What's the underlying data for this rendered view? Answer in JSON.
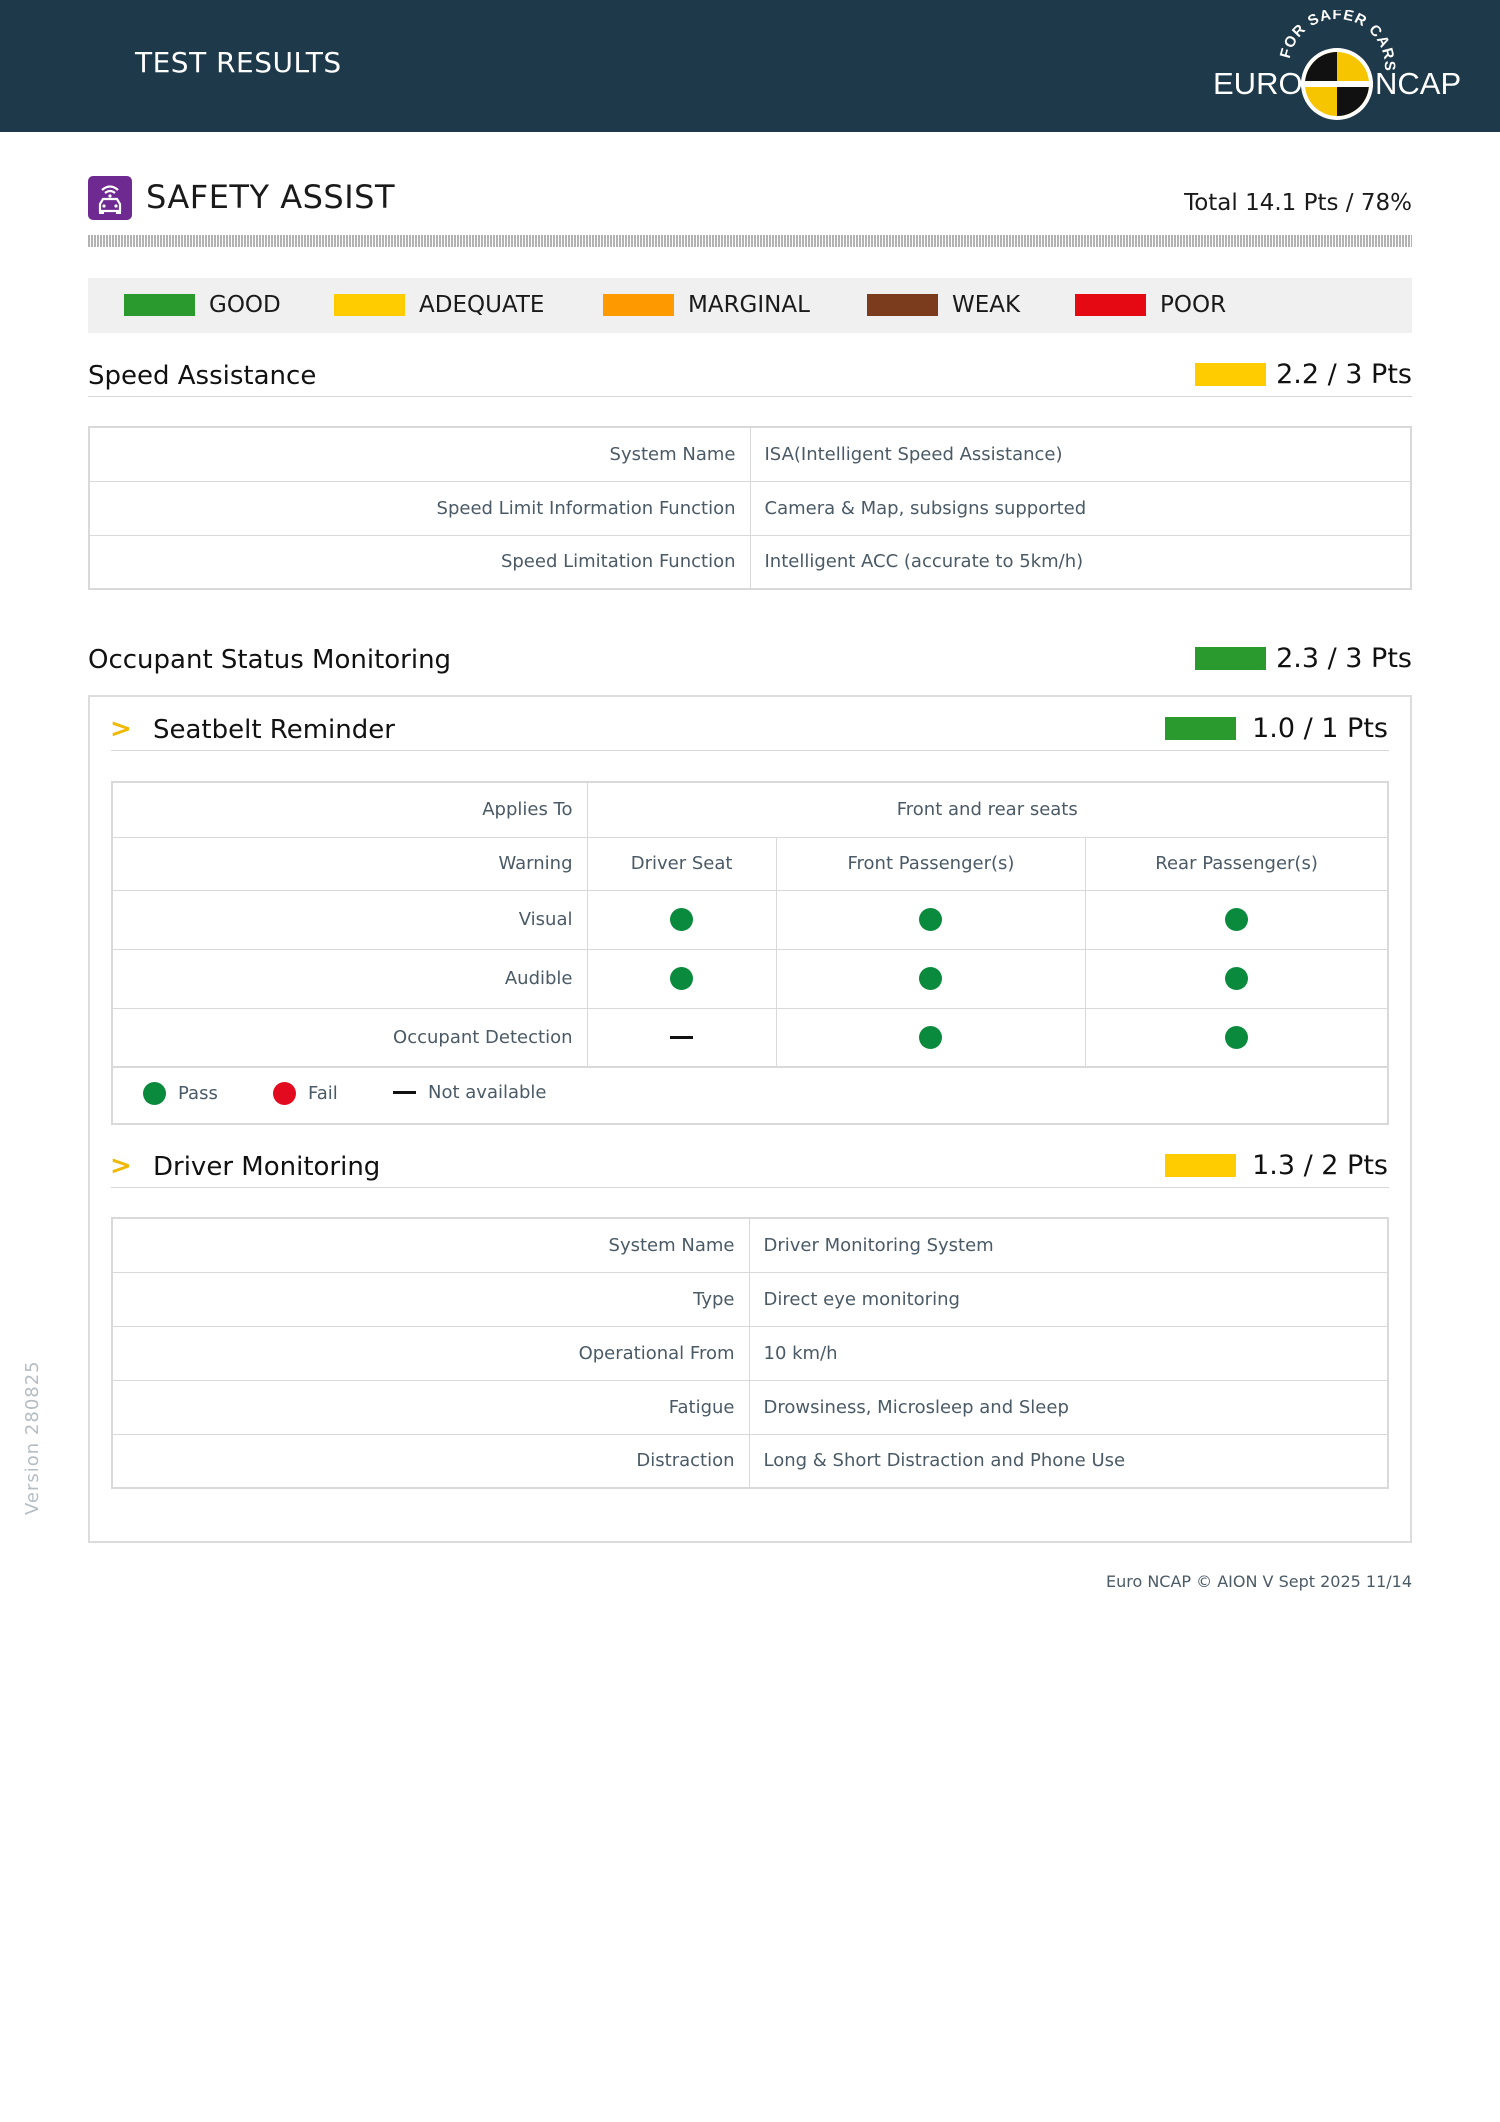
{
  "header": {
    "title": "TEST RESULTS",
    "logo": {
      "left_word": "EURO",
      "right_word": "NCAP",
      "arc_text": "FOR SAFER CARS"
    }
  },
  "section": {
    "title": "SAFETY ASSIST",
    "total": "Total 14.1 Pts / 78%",
    "icon": "car-signal-icon"
  },
  "legend": [
    {
      "label": "GOOD",
      "color": "#2a9a2e"
    },
    {
      "label": "ADEQUATE",
      "color": "#ffcc00"
    },
    {
      "label": "MARGINAL",
      "color": "#ff9900"
    },
    {
      "label": "WEAK",
      "color": "#7b3c1e"
    },
    {
      "label": "POOR",
      "color": "#e50914"
    }
  ],
  "speed_assistance": {
    "title": "Speed Assistance",
    "score": "2.2 / 3 Pts",
    "color": "#ffcc00",
    "rows": [
      {
        "key": "System Name",
        "value": "ISA(Intelligent Speed Assistance)"
      },
      {
        "key": "Speed Limit Information Function",
        "value": "Camera & Map, subsigns supported"
      },
      {
        "key": "Speed Limitation Function",
        "value": "Intelligent ACC (accurate to 5km/h)"
      }
    ]
  },
  "occupant_status": {
    "title": "Occupant Status Monitoring",
    "score": "2.3 / 3 Pts",
    "color": "#2a9a2e",
    "seatbelt": {
      "title": "Seatbelt Reminder",
      "score": "1.0 / 1 Pts",
      "color": "#2a9a2e",
      "applies_to_label": "Applies To",
      "applies_to_value": "Front and rear seats",
      "warning_label": "Warning",
      "columns": [
        "Driver Seat",
        "Front Passenger(s)",
        "Rear Passenger(s)"
      ],
      "rows": [
        {
          "label": "Visual",
          "values": [
            "pass",
            "pass",
            "pass"
          ]
        },
        {
          "label": "Audible",
          "values": [
            "pass",
            "pass",
            "pass"
          ]
        },
        {
          "label": "Occupant Detection",
          "values": [
            "na",
            "pass",
            "pass"
          ]
        }
      ],
      "key": {
        "pass": "Pass",
        "fail": "Fail",
        "na": "Not available"
      },
      "status_colors": {
        "pass": "#0a8a3c",
        "fail": "#e10a1e"
      }
    },
    "driver_monitoring": {
      "title": "Driver Monitoring",
      "score": "1.3 / 2 Pts",
      "color": "#ffcc00",
      "rows": [
        {
          "key": "System Name",
          "value": "Driver Monitoring System"
        },
        {
          "key": "Type",
          "value": "Direct eye monitoring"
        },
        {
          "key": "Operational From",
          "value": "10 km/h"
        },
        {
          "key": "Fatigue",
          "value": "Drowsiness, Microsleep and Sleep"
        },
        {
          "key": "Distraction",
          "value": "Long & Short Distraction and Phone Use"
        }
      ]
    }
  },
  "version": "Version 280825",
  "footer": "Euro NCAP © AION V Sept 2025 11/14"
}
